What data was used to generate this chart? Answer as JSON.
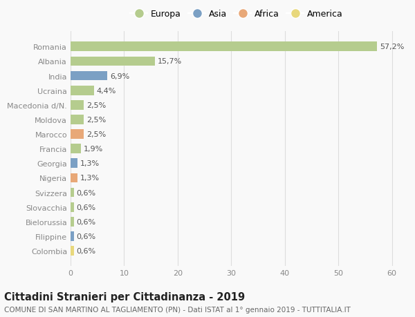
{
  "categories": [
    "Romania",
    "Albania",
    "India",
    "Ucraina",
    "Macedonia d/N.",
    "Moldova",
    "Marocco",
    "Francia",
    "Georgia",
    "Nigeria",
    "Svizzera",
    "Slovacchia",
    "Bielorussia",
    "Filippine",
    "Colombia"
  ],
  "values": [
    57.2,
    15.7,
    6.9,
    4.4,
    2.5,
    2.5,
    2.5,
    1.9,
    1.3,
    1.3,
    0.6,
    0.6,
    0.6,
    0.6,
    0.6
  ],
  "labels": [
    "57,2%",
    "15,7%",
    "6,9%",
    "4,4%",
    "2,5%",
    "2,5%",
    "2,5%",
    "1,9%",
    "1,3%",
    "1,3%",
    "0,6%",
    "0,6%",
    "0,6%",
    "0,6%",
    "0,6%"
  ],
  "continents": [
    "Europa",
    "Europa",
    "Asia",
    "Europa",
    "Europa",
    "Europa",
    "Africa",
    "Europa",
    "Asia",
    "Africa",
    "Europa",
    "Europa",
    "Europa",
    "Asia",
    "America"
  ],
  "continent_colors": {
    "Europa": "#b5cc8e",
    "Asia": "#7ba0c4",
    "Africa": "#e8a878",
    "America": "#e8d87c"
  },
  "legend_order": [
    "Europa",
    "Asia",
    "Africa",
    "America"
  ],
  "title": "Cittadini Stranieri per Cittadinanza - 2019",
  "subtitle": "COMUNE DI SAN MARTINO AL TAGLIAMENTO (PN) - Dati ISTAT al 1° gennaio 2019 - TUTTITALIA.IT",
  "xlim": [
    0,
    62
  ],
  "xticks": [
    0,
    10,
    20,
    30,
    40,
    50,
    60
  ],
  "background_color": "#f9f9f9",
  "grid_color": "#dddddd",
  "bar_height": 0.65,
  "title_fontsize": 10.5,
  "subtitle_fontsize": 7.5,
  "tick_fontsize": 8,
  "label_fontsize": 8,
  "legend_fontsize": 9
}
